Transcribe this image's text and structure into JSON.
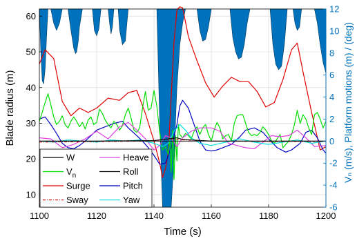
{
  "chart_data": {
    "type": "line",
    "xlabel": "Time (s)",
    "ylabel_left": "Blade radius (m)",
    "ylabel_right": "Vₙ (m/s), Platform motions (m) / (deg)",
    "xlim": [
      1100,
      1200
    ],
    "ylim_left": [
      6.5,
      62
    ],
    "ylim_right": [
      -6,
      12
    ],
    "xticks": [
      1100,
      1120,
      1140,
      1160,
      1180,
      1200
    ],
    "yticks_left": [
      10,
      20,
      30,
      40,
      50,
      60
    ],
    "yticks_right": [
      -6,
      -4,
      -2,
      0,
      2,
      4,
      6,
      8,
      10,
      12
    ],
    "grid": true,
    "legend_position": "bottom-left",
    "colors": {
      "W": "#000000",
      "Vn": "#00dd00",
      "Surge": "#e00000",
      "Sway": "#d00000",
      "Heave": "#e040e0",
      "Roll": "#000000",
      "Pitch": "#0000c0",
      "Yaw": "#00e0e0",
      "contour": "#0072bd"
    },
    "legend": [
      {
        "key": "W",
        "label": "W",
        "col": 0
      },
      {
        "key": "Vn",
        "label": "V",
        "sub": "n",
        "col": 0
      },
      {
        "key": "Surge",
        "label": "Surge",
        "col": 0
      },
      {
        "key": "Sway",
        "label": "Sway",
        "col": 0,
        "dash": true
      },
      {
        "key": "Heave",
        "label": "Heave",
        "col": 1
      },
      {
        "key": "Roll",
        "label": "Roll",
        "col": 1
      },
      {
        "key": "Pitch",
        "label": "Pitch",
        "col": 1
      },
      {
        "key": "Yaw",
        "label": "Yaw",
        "col": 1
      }
    ],
    "series": [
      {
        "key": "Surge",
        "axis": "right",
        "x": [
          1100,
          1102,
          1105,
          1108,
          1111,
          1114,
          1117,
          1120,
          1124,
          1128,
          1131,
          1134,
          1137,
          1140,
          1142,
          1143,
          1144,
          1145,
          1146,
          1147,
          1148,
          1149,
          1150,
          1152,
          1155,
          1158,
          1161,
          1164,
          1167,
          1170,
          1173,
          1176,
          1179,
          1182,
          1185,
          1188,
          1190,
          1192,
          1195,
          1198,
          1200
        ],
        "y": [
          7.0,
          8.3,
          7.5,
          3.6,
          2.3,
          3.0,
          2.6,
          3.0,
          3.9,
          3.7,
          4.4,
          4.6,
          2.5,
          0.0,
          -2.0,
          -3.3,
          -2.5,
          -1.0,
          4.0,
          9.0,
          11.9,
          12.2,
          12.1,
          9.5,
          7.3,
          5.3,
          4.0,
          5.0,
          5.8,
          5.4,
          5.4,
          4.5,
          3.1,
          3.5,
          5.6,
          8.3,
          8.9,
          6.3,
          2.6,
          -0.8,
          -0.5
        ]
      },
      {
        "key": "Pitch",
        "axis": "right",
        "x": [
          1100,
          1102,
          1104,
          1106,
          1108,
          1110,
          1112,
          1114,
          1116,
          1118,
          1120,
          1123,
          1126,
          1129,
          1131,
          1134,
          1136,
          1138,
          1140,
          1142,
          1144,
          1146,
          1148,
          1149,
          1150,
          1152,
          1154,
          1156,
          1158,
          1160,
          1162,
          1164,
          1167,
          1170,
          1172,
          1175,
          1178,
          1180,
          1183,
          1186,
          1188,
          1191,
          1193,
          1195,
          1197,
          1199,
          1200
        ],
        "y": [
          2.0,
          2.2,
          1.5,
          0.7,
          -0.2,
          -0.6,
          -0.7,
          -0.4,
          0.0,
          0.5,
          1.0,
          1.3,
          1.6,
          1.8,
          1.2,
          0.5,
          0.0,
          -0.6,
          -1.3,
          -2.1,
          -2.0,
          -0.6,
          1.5,
          3.2,
          3.7,
          3.0,
          1.5,
          0.0,
          -0.8,
          -0.9,
          -0.8,
          -0.6,
          -0.3,
          0.4,
          1.0,
          1.2,
          0.8,
          0.2,
          -0.6,
          -1.0,
          -0.8,
          -0.2,
          0.8,
          1.0,
          0.3,
          -0.8,
          -1.1
        ]
      },
      {
        "key": "Vn",
        "axis": "right",
        "x": [
          1100,
          1101,
          1102,
          1103,
          1104,
          1105,
          1106,
          1107,
          1108,
          1109,
          1110,
          1111,
          1112,
          1113,
          1114,
          1115,
          1116,
          1117,
          1118,
          1119,
          1120,
          1121,
          1122,
          1123,
          1124,
          1125,
          1126,
          1127,
          1128,
          1129,
          1130,
          1131,
          1132,
          1133,
          1134,
          1135,
          1136,
          1137,
          1138,
          1139,
          1140,
          1141,
          1142,
          1143,
          1144,
          1145,
          1145.5,
          1146,
          1146.5,
          1147,
          1147.5,
          1148,
          1148.5,
          1149,
          1150,
          1151,
          1152,
          1153,
          1154,
          1155,
          1156,
          1157,
          1158,
          1159,
          1160,
          1161,
          1162,
          1163,
          1164,
          1165,
          1166,
          1167,
          1168,
          1169,
          1170,
          1171,
          1172,
          1173,
          1174,
          1175,
          1176,
          1177,
          1178,
          1179,
          1180,
          1181,
          1182,
          1183,
          1184,
          1185,
          1186,
          1187,
          1188,
          1189,
          1190,
          1191,
          1192,
          1193,
          1194,
          1195,
          1196,
          1197,
          1198,
          1199,
          1200
        ],
        "y": [
          1.8,
          2.6,
          3.5,
          4.3,
          3.3,
          2.2,
          1.5,
          1.8,
          2.3,
          1.5,
          1.2,
          1.8,
          2.2,
          1.8,
          1.3,
          1.7,
          1.1,
          1.9,
          2.2,
          1.5,
          1.7,
          2.9,
          2.5,
          1.9,
          1.5,
          1.2,
          1.8,
          1.5,
          1.0,
          1.4,
          2.4,
          3.0,
          2.1,
          1.0,
          0.8,
          1.2,
          3.0,
          4.5,
          2.8,
          3.0,
          4.6,
          3.2,
          0.8,
          -0.8,
          -0.5,
          -1.2,
          0.3,
          -2.8,
          1.0,
          -3.5,
          0.5,
          -1.8,
          1.5,
          0.6,
          0.3,
          0.7,
          0.5,
          0.2,
          0.9,
          1.3,
          0.6,
          1.2,
          1.5,
          0.6,
          0.0,
          1.0,
          1.7,
          1.2,
          0.2,
          0.5,
          0.6,
          0.0,
          1.6,
          2.3,
          2.4,
          2.4,
          1.6,
          0.8,
          0.5,
          0.6,
          0.5,
          0.8,
          1.3,
          1.0,
          0.6,
          0.0,
          -0.2,
          0.2,
          0.6,
          -0.6,
          -0.3,
          0.0,
          0.6,
          1.5,
          2.8,
          1.6,
          2.4,
          2.0,
          1.2,
          0.6,
          2.4,
          2.6,
          2.0,
          1.2,
          1.8
        ]
      },
      {
        "key": "Heave",
        "axis": "right",
        "x": [
          1100,
          1104,
          1108,
          1112,
          1116,
          1120,
          1124,
          1128,
          1131,
          1134,
          1137,
          1140,
          1142,
          1144,
          1146,
          1148,
          1150,
          1153,
          1156,
          1160,
          1163,
          1166,
          1169,
          1172,
          1175,
          1178,
          1181,
          1184,
          1187,
          1190,
          1193,
          1196,
          1200
        ],
        "y": [
          0.3,
          0.2,
          -0.6,
          -0.3,
          0.2,
          0.9,
          0.2,
          1.3,
          1.7,
          1.0,
          0.2,
          -0.8,
          -0.4,
          0.5,
          0.3,
          -0.5,
          0.3,
          0.9,
          1.2,
          1.2,
          0.9,
          -0.2,
          -0.4,
          -0.6,
          -0.7,
          -0.1,
          0.5,
          0.4,
          0.5,
          1.0,
          0.3,
          -0.5,
          -0.4
        ]
      },
      {
        "key": "Yaw",
        "axis": "right",
        "x": [
          1100,
          1105,
          1110,
          1115,
          1120,
          1125,
          1130,
          1135,
          1140,
          1143,
          1145,
          1147,
          1149,
          1151,
          1153,
          1156,
          1160,
          1165,
          1170,
          1175,
          1180,
          1185,
          1190,
          1195,
          1200
        ],
        "y": [
          0.0,
          -0.1,
          0.1,
          0.0,
          -0.1,
          0.1,
          0.0,
          0.1,
          -0.2,
          -0.5,
          -0.2,
          0.9,
          1.5,
          1.0,
          0.3,
          -0.2,
          -0.4,
          -0.1,
          0.2,
          -0.1,
          -0.3,
          -0.1,
          0.1,
          -0.2,
          0.0
        ]
      },
      {
        "key": "Sway",
        "axis": "right",
        "x": [
          1100,
          1120,
          1140,
          1145,
          1150,
          1160,
          1180,
          1200
        ],
        "y": [
          -0.1,
          -0.05,
          0.0,
          0.2,
          0.1,
          0.0,
          -0.05,
          -0.05
        ]
      },
      {
        "key": "Roll",
        "axis": "right",
        "x": [
          1100,
          1120,
          1140,
          1145,
          1148,
          1150,
          1160,
          1180,
          1200
        ],
        "y": [
          0.0,
          0.0,
          0.05,
          0.2,
          0.3,
          0.15,
          0.0,
          0.0,
          0.0
        ]
      },
      {
        "key": "W",
        "axis": "right",
        "x": [
          1100,
          1200
        ],
        "y": [
          0.0,
          0.0
        ]
      }
    ],
    "contour_regions": [
      {
        "axis": "left",
        "x": [
          1100,
          1100.5,
          1101,
          1101.5,
          1102,
          1102.5,
          1103
        ],
        "top": [
          62,
          62,
          62,
          62,
          62,
          62,
          62
        ],
        "bottom": [
          62,
          50,
          42,
          41,
          45,
          54,
          62
        ]
      },
      {
        "axis": "left",
        "x": [
          1104,
          1105,
          1106,
          1107,
          1108
        ],
        "top": [
          62,
          62,
          62,
          62,
          62
        ],
        "bottom": [
          62,
          58,
          56,
          58,
          62
        ]
      },
      {
        "axis": "left",
        "x": [
          1110,
          1111,
          1112,
          1112.6,
          1113,
          1113.6,
          1114,
          1115
        ],
        "top": [
          62,
          62,
          62,
          62,
          62,
          62,
          62,
          62
        ],
        "bottom": [
          62,
          56,
          51,
          49.5,
          50,
          53,
          57,
          62
        ]
      },
      {
        "axis": "left",
        "x": [
          1118.5,
          1119.2,
          1120,
          1120.8,
          1121.5
        ],
        "top": [
          62,
          62,
          62,
          62,
          62
        ],
        "bottom": [
          62,
          56,
          54.5,
          56.5,
          62
        ]
      },
      {
        "axis": "left",
        "x": [
          1124,
          1124.5,
          1125,
          1125.5,
          1126
        ],
        "top": [
          62,
          62,
          62,
          62,
          62
        ],
        "bottom": [
          62,
          58,
          55,
          57,
          62
        ]
      },
      {
        "axis": "left",
        "x": [
          1127.5,
          1128,
          1129,
          1130,
          1131
        ],
        "top": [
          62,
          62,
          62,
          62,
          62
        ],
        "bottom": [
          62,
          56,
          52,
          53,
          62
        ]
      },
      {
        "axis": "left",
        "x": [
          1141,
          1142,
          1143,
          1144,
          1145,
          1146,
          1147,
          1148,
          1149,
          1150,
          1151
        ],
        "top": [
          62,
          62,
          62,
          62,
          62,
          62,
          62,
          62,
          62,
          62,
          62
        ],
        "bottom": [
          62,
          30,
          6.5,
          6.5,
          6.5,
          6.5,
          20,
          40,
          52,
          58,
          62
        ]
      },
      {
        "axis": "left",
        "x": [
          1155,
          1156,
          1157,
          1158,
          1159,
          1160
        ],
        "top": [
          62,
          62,
          62,
          62,
          62,
          62
        ],
        "bottom": [
          62,
          56,
          53,
          53.5,
          57,
          62
        ]
      },
      {
        "axis": "left",
        "x": [
          1166.5,
          1167.5,
          1168.5,
          1169.5,
          1170.5,
          1171.5,
          1172.5,
          1173.5
        ],
        "top": [
          62,
          62,
          62,
          62,
          62,
          62,
          62,
          62
        ],
        "bottom": [
          62,
          54,
          50,
          48,
          48.5,
          52,
          58,
          62
        ]
      },
      {
        "axis": "left",
        "x": [
          1180.5,
          1181.5,
          1182.5,
          1183.5,
          1184.5,
          1185.5,
          1186.5
        ],
        "top": [
          62,
          62,
          62,
          62,
          62,
          62,
          62
        ],
        "bottom": [
          62,
          52,
          46.5,
          45,
          46,
          52,
          62
        ]
      },
      {
        "axis": "left",
        "x": [
          1188.5,
          1189.2,
          1190,
          1190.8,
          1191.5
        ],
        "top": [
          62,
          62,
          62,
          62,
          62
        ],
        "bottom": [
          62,
          58,
          56,
          57,
          62
        ]
      },
      {
        "axis": "left",
        "x": [
          1196,
          1197,
          1198,
          1199,
          1200
        ],
        "top": [
          62,
          62,
          62,
          62,
          62
        ],
        "bottom": [
          62,
          58,
          52,
          47,
          44
        ]
      }
    ]
  }
}
